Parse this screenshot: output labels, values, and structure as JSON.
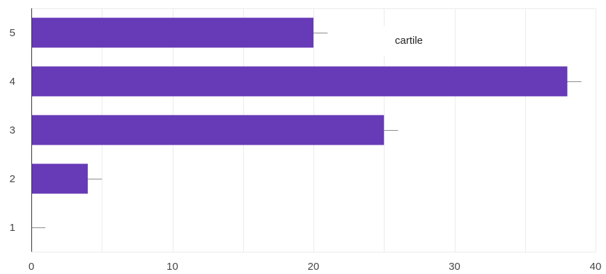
{
  "chart_data": {
    "type": "bar",
    "orientation": "horizontal",
    "categories": [
      "1",
      "2",
      "3",
      "4",
      "5"
    ],
    "series": [
      {
        "name": "cartile",
        "values": [
          0,
          4,
          25,
          38,
          20
        ],
        "error_upper": [
          1,
          5,
          26,
          39,
          21
        ],
        "color": "#673ab7"
      }
    ],
    "x_ticks": [
      "0",
      "10",
      "20",
      "30",
      "40"
    ],
    "xlim": [
      0,
      40
    ],
    "grid": true,
    "legend": {
      "position": "top-right",
      "labels": [
        "cartile"
      ]
    }
  }
}
